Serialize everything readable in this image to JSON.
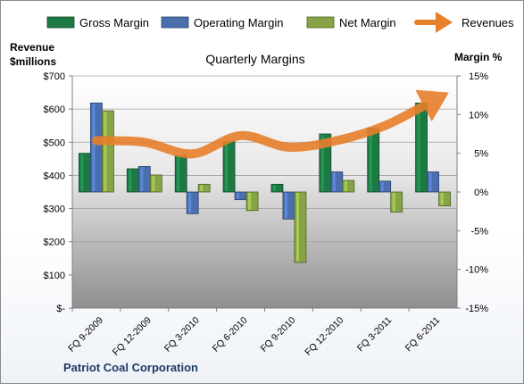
{
  "chart_data": {
    "type": "bar",
    "title": "Quarterly Margins",
    "company": "Patriot Coal Corporation",
    "left_axis_label": [
      "Revenue",
      "$millions"
    ],
    "right_axis_label": "Margin %",
    "left_ticks": [
      "$700",
      "$600",
      "$500",
      "$400",
      "$300",
      "$200",
      "$100",
      "$-"
    ],
    "right_ticks": [
      "15%",
      "10%",
      "5%",
      "0%",
      "-5%",
      "-10%",
      "-15%"
    ],
    "left_ylim": [
      0,
      700
    ],
    "right_ylim": [
      -15,
      15
    ],
    "grid": true,
    "legend_position": "top",
    "categories": [
      "FQ 9-2009",
      "FQ 12-2009",
      "FQ 3-2010",
      "FQ 6-2010",
      "FQ 9-2010",
      "FQ 12-2010",
      "FQ 3-2011",
      "FQ 6-2011"
    ],
    "series": [
      {
        "name": "Gross Margin",
        "axis": "right",
        "color": "#1e7a45",
        "values": [
          5.0,
          3.0,
          4.7,
          6.5,
          1.0,
          7.5,
          8.2,
          11.5
        ]
      },
      {
        "name": "Operating Margin",
        "axis": "right",
        "color": "#4a6eae",
        "values": [
          11.5,
          3.3,
          -2.8,
          -1.0,
          -3.5,
          2.6,
          1.4,
          2.6
        ]
      },
      {
        "name": "Net Margin",
        "axis": "right",
        "color": "#86a445",
        "values": [
          10.5,
          2.2,
          1.0,
          -2.4,
          -9.1,
          1.5,
          -2.6,
          -1.8
        ]
      },
      {
        "name": "Revenues",
        "axis": "left",
        "type": "line",
        "color": "#e87f2a",
        "values": [
          505,
          500,
          465,
          520,
          485,
          505,
          550,
          625
        ]
      }
    ]
  }
}
